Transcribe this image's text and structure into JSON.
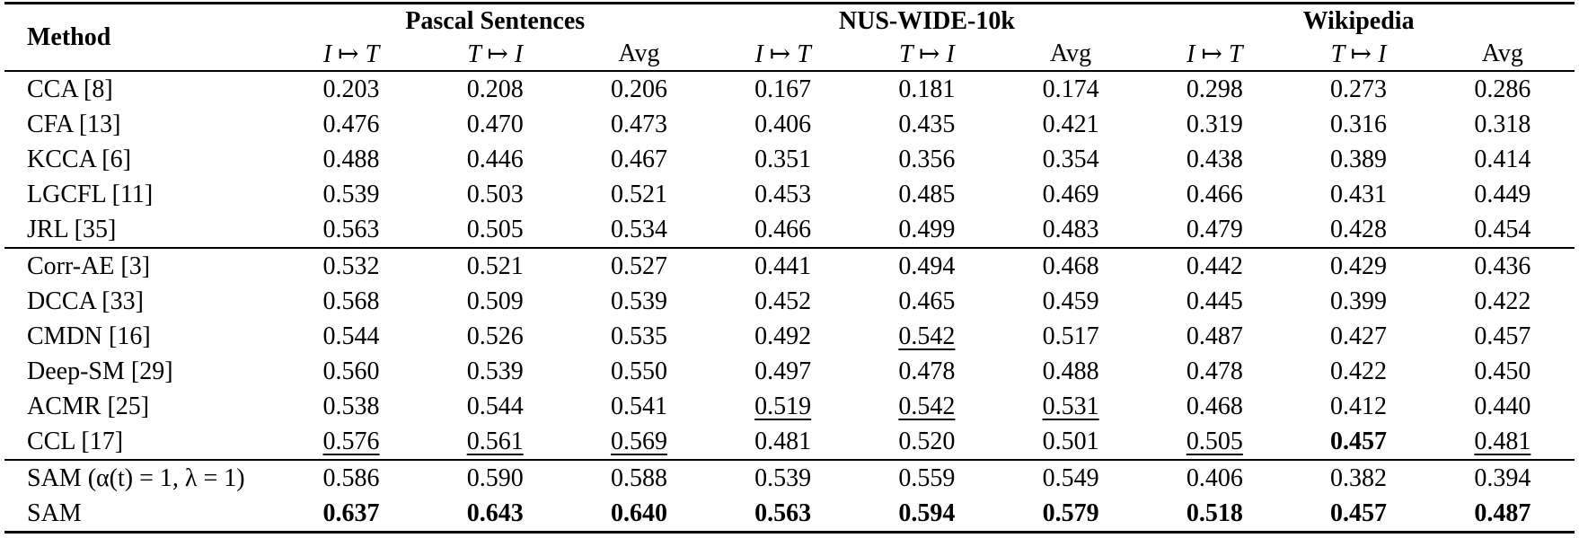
{
  "colors": {
    "text": "#000000",
    "background": "#ffffff",
    "rule": "#000000"
  },
  "table": {
    "title_column": "Method",
    "groups": [
      {
        "label": "Pascal Sentences"
      },
      {
        "label": "NUS-WIDE-10k"
      },
      {
        "label": "Wikipedia"
      }
    ],
    "sub_headers": [
      "I ↦ T",
      "T ↦ I",
      "Avg"
    ],
    "sections": [
      {
        "name": "traditional-methods",
        "rows": [
          {
            "method": "CCA [8]",
            "values": [
              "0.203",
              "0.208",
              "0.206",
              "0.167",
              "0.181",
              "0.174",
              "0.298",
              "0.273",
              "0.286"
            ],
            "styles": [
              "",
              "",
              "",
              "",
              "",
              "",
              "",
              "",
              ""
            ]
          },
          {
            "method": "CFA [13]",
            "values": [
              "0.476",
              "0.470",
              "0.473",
              "0.406",
              "0.435",
              "0.421",
              "0.319",
              "0.316",
              "0.318"
            ],
            "styles": [
              "",
              "",
              "",
              "",
              "",
              "",
              "",
              "",
              ""
            ]
          },
          {
            "method": "KCCA [6]",
            "values": [
              "0.488",
              "0.446",
              "0.467",
              "0.351",
              "0.356",
              "0.354",
              "0.438",
              "0.389",
              "0.414"
            ],
            "styles": [
              "",
              "",
              "",
              "",
              "",
              "",
              "",
              "",
              ""
            ]
          },
          {
            "method": "LGCFL [11]",
            "values": [
              "0.539",
              "0.503",
              "0.521",
              "0.453",
              "0.485",
              "0.469",
              "0.466",
              "0.431",
              "0.449"
            ],
            "styles": [
              "",
              "",
              "",
              "",
              "",
              "",
              "",
              "",
              ""
            ]
          },
          {
            "method": "JRL [35]",
            "values": [
              "0.563",
              "0.505",
              "0.534",
              "0.466",
              "0.499",
              "0.483",
              "0.479",
              "0.428",
              "0.454"
            ],
            "styles": [
              "",
              "",
              "",
              "",
              "",
              "",
              "",
              "",
              ""
            ]
          }
        ]
      },
      {
        "name": "deep-methods",
        "rows": [
          {
            "method": "Corr-AE [3]",
            "values": [
              "0.532",
              "0.521",
              "0.527",
              "0.441",
              "0.494",
              "0.468",
              "0.442",
              "0.429",
              "0.436"
            ],
            "styles": [
              "",
              "",
              "",
              "",
              "",
              "",
              "",
              "",
              ""
            ]
          },
          {
            "method": "DCCA [33]",
            "values": [
              "0.568",
              "0.509",
              "0.539",
              "0.452",
              "0.465",
              "0.459",
              "0.445",
              "0.399",
              "0.422"
            ],
            "styles": [
              "",
              "",
              "",
              "",
              "",
              "",
              "",
              "",
              ""
            ]
          },
          {
            "method": "CMDN [16]",
            "values": [
              "0.544",
              "0.526",
              "0.535",
              "0.492",
              "0.542",
              "0.517",
              "0.487",
              "0.427",
              "0.457"
            ],
            "styles": [
              "",
              "",
              "",
              "",
              "u",
              "",
              "",
              "",
              ""
            ]
          },
          {
            "method": "Deep-SM [29]",
            "values": [
              "0.560",
              "0.539",
              "0.550",
              "0.497",
              "0.478",
              "0.488",
              "0.478",
              "0.422",
              "0.450"
            ],
            "styles": [
              "",
              "",
              "",
              "",
              "",
              "",
              "",
              "",
              ""
            ]
          },
          {
            "method": "ACMR [25]",
            "values": [
              "0.538",
              "0.544",
              "0.541",
              "0.519",
              "0.542",
              "0.531",
              "0.468",
              "0.412",
              "0.440"
            ],
            "styles": [
              "",
              "",
              "",
              "u",
              "u",
              "u",
              "",
              "",
              ""
            ]
          },
          {
            "method": "CCL [17]",
            "values": [
              "0.576",
              "0.561",
              "0.569",
              "0.481",
              "0.520",
              "0.501",
              "0.505",
              "0.457",
              "0.481"
            ],
            "styles": [
              "u",
              "u",
              "u",
              "",
              "",
              "",
              "u",
              "b",
              "u"
            ]
          }
        ]
      },
      {
        "name": "sam-methods",
        "rows": [
          {
            "method": "SAM (α(t) = 1,  λ = 1)",
            "values": [
              "0.586",
              "0.590",
              "0.588",
              "0.539",
              "0.559",
              "0.549",
              "0.406",
              "0.382",
              "0.394"
            ],
            "styles": [
              "",
              "",
              "",
              "",
              "",
              "",
              "",
              "",
              ""
            ]
          },
          {
            "method": "SAM",
            "values": [
              "0.637",
              "0.643",
              "0.640",
              "0.563",
              "0.594",
              "0.579",
              "0.518",
              "0.457",
              "0.487"
            ],
            "styles": [
              "b",
              "b",
              "b",
              "b",
              "b",
              "b",
              "b",
              "b",
              "b"
            ]
          }
        ]
      }
    ]
  }
}
